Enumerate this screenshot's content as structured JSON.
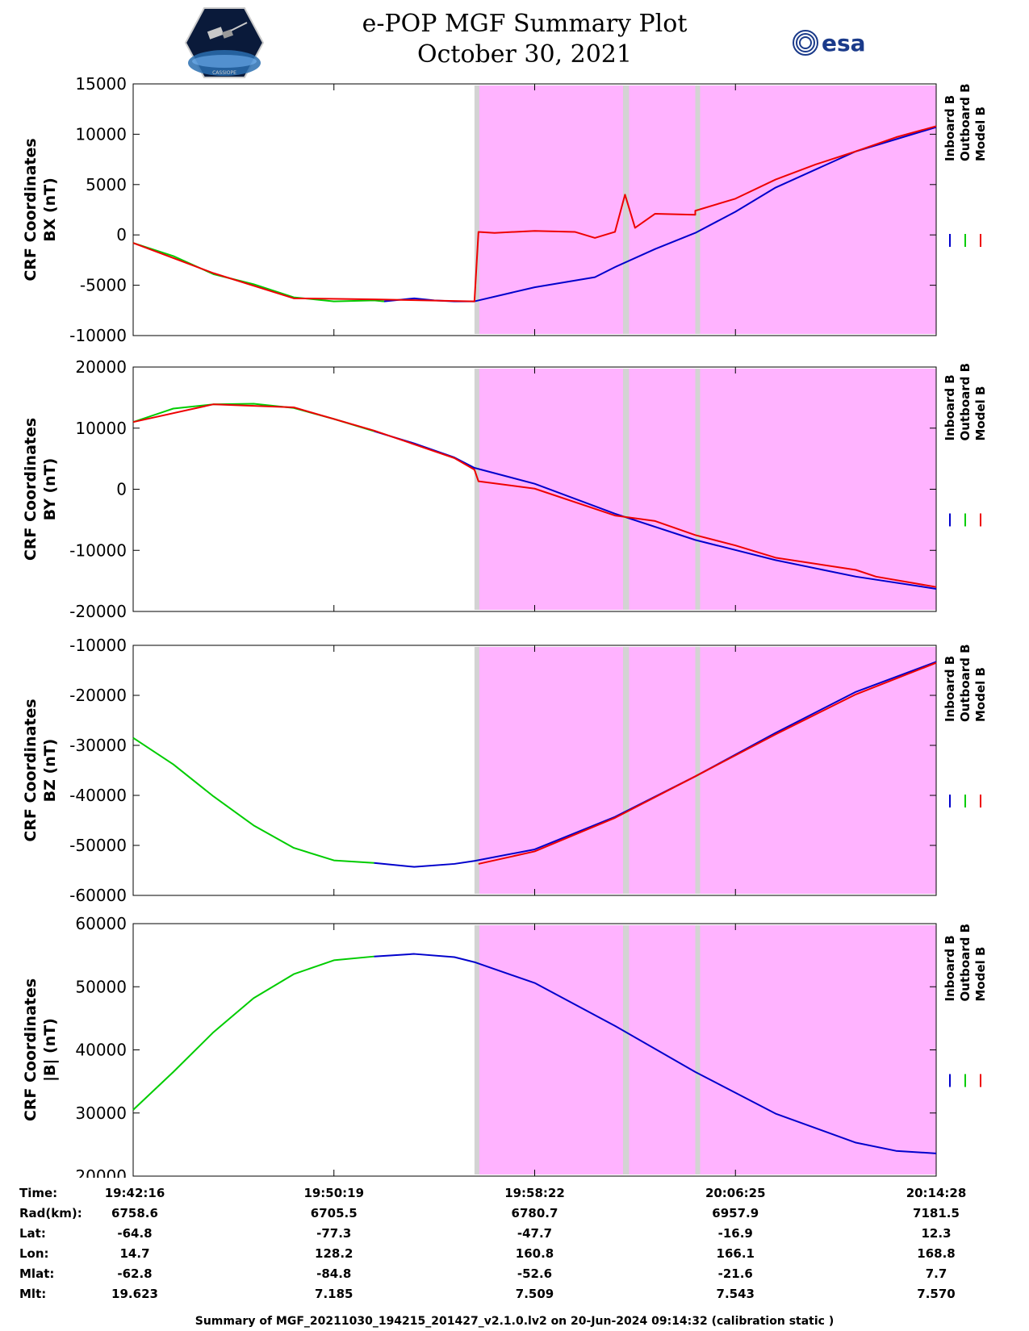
{
  "header": {
    "title_line1": "e-POP MGF Summary Plot",
    "title_line2": "October 30, 2021",
    "logo_left_text": "CASSIOPE",
    "logo_right_text": "esa"
  },
  "colors": {
    "inboard": "#0000cc",
    "outboard": "#00cc00",
    "model": "#ee0000",
    "shade_pink": "#ffb3ff",
    "shade_gray": "#d3d3d3"
  },
  "chart_data": [
    {
      "type": "line",
      "ylabel_line1": "CRF Coordinates",
      "ylabel_line2": "BX (nT)",
      "ylim": [
        -10000,
        15000
      ],
      "yticks": [
        "15000",
        "10000",
        "5000",
        "0",
        "-5000",
        "-10000"
      ],
      "legend": [
        "Inboard B",
        "Outboard B",
        "Model B"
      ],
      "series": [
        {
          "name": "Outboard B",
          "x": [
            0,
            2,
            4,
            6,
            8,
            10,
            12,
            12.5
          ],
          "y": [
            -800,
            -2100,
            -3900,
            -4900,
            -6200,
            -6600,
            -6500,
            -6600
          ]
        },
        {
          "name": "Inboard B",
          "x": [
            12.5,
            14,
            15,
            16,
            17,
            20,
            23,
            24,
            26,
            28,
            30,
            32,
            34,
            36,
            40
          ],
          "y": [
            -6600,
            -6300,
            -6500,
            -6600,
            -6600,
            -5200,
            -4200,
            -3200,
            -1400,
            200,
            2300,
            4700,
            6500,
            8300,
            10700
          ]
        },
        {
          "name": "Model B",
          "x": [
            0,
            4,
            8,
            12,
            17,
            17.2,
            18,
            20,
            22,
            23,
            24,
            24.5,
            25,
            26,
            28,
            28,
            30,
            32,
            34,
            36,
            38,
            40
          ],
          "y": [
            -800,
            -3800,
            -6300,
            -6400,
            -6600,
            300,
            200,
            400,
            300,
            -300,
            300,
            4000,
            700,
            2100,
            2000,
            2400,
            3600,
            5500,
            7000,
            8300,
            9700,
            10800
          ]
        }
      ]
    },
    {
      "type": "line",
      "ylabel_line1": "CRF Coordinates",
      "ylabel_line2": "BY (nT)",
      "ylim": [
        -20000,
        20000
      ],
      "yticks": [
        "20000",
        "10000",
        "0",
        "-10000",
        "-20000"
      ],
      "legend": [
        "Inboard B",
        "Outboard B",
        "Model B"
      ],
      "series": [
        {
          "name": "Outboard B",
          "x": [
            0,
            2,
            4,
            6,
            8,
            10,
            12
          ],
          "y": [
            11000,
            13200,
            13900,
            14000,
            13300,
            11500,
            9500
          ]
        },
        {
          "name": "Inboard B",
          "x": [
            12,
            14,
            16,
            17,
            20,
            24,
            28,
            32,
            36,
            40
          ],
          "y": [
            9500,
            7500,
            5200,
            3500,
            900,
            -4000,
            -8300,
            -11600,
            -14300,
            -16300
          ]
        },
        {
          "name": "Model B",
          "x": [
            0,
            4,
            8,
            12,
            16,
            17,
            17.2,
            20,
            24,
            26,
            28,
            30,
            32,
            36,
            37,
            40
          ],
          "y": [
            11000,
            13900,
            13400,
            9600,
            5100,
            3200,
            1300,
            100,
            -4300,
            -5200,
            -7500,
            -9200,
            -11200,
            -13200,
            -14300,
            -16000
          ]
        }
      ]
    },
    {
      "type": "line",
      "ylabel_line1": "CRF Coordinates",
      "ylabel_line2": "BZ (nT)",
      "ylim": [
        -60000,
        -10000
      ],
      "yticks": [
        "-10000",
        "-20000",
        "-30000",
        "-40000",
        "-50000",
        "-60000"
      ],
      "legend": [
        "Inboard B",
        "Outboard B",
        "Model B"
      ],
      "series": [
        {
          "name": "Outboard B",
          "x": [
            0,
            2,
            4,
            6,
            8,
            10,
            12
          ],
          "y": [
            -28500,
            -33800,
            -40200,
            -46000,
            -50500,
            -53000,
            -53500
          ]
        },
        {
          "name": "Inboard B",
          "x": [
            12,
            14,
            16,
            17,
            20,
            24,
            28,
            32,
            36,
            40
          ],
          "y": [
            -53500,
            -54300,
            -53700,
            -53100,
            -50800,
            -44300,
            -36200,
            -27500,
            -19300,
            -13300
          ]
        },
        {
          "name": "Model B",
          "x": [
            17.2,
            20,
            24,
            28,
            32,
            36,
            40
          ],
          "y": [
            -53700,
            -51200,
            -44500,
            -36200,
            -27800,
            -19800,
            -13500
          ]
        }
      ]
    },
    {
      "type": "line",
      "ylabel_line1": "CRF Coordinates",
      "ylabel_line2": "|B| (nT)",
      "ylim": [
        20000,
        60000
      ],
      "yticks": [
        "60000",
        "50000",
        "40000",
        "30000",
        "20000"
      ],
      "legend": [
        "Inboard B",
        "Outboard B",
        "Model B"
      ],
      "series": [
        {
          "name": "Outboard B",
          "x": [
            0,
            2,
            4,
            6,
            8,
            10,
            12
          ],
          "y": [
            30500,
            36500,
            42800,
            48200,
            52000,
            54200,
            54800
          ]
        },
        {
          "name": "Inboard B",
          "x": [
            12,
            14,
            16,
            17,
            20,
            24,
            28,
            32,
            36,
            38,
            40
          ],
          "y": [
            54800,
            55200,
            54700,
            53900,
            50600,
            43800,
            36500,
            29900,
            25300,
            24000,
            23600
          ]
        }
      ]
    }
  ],
  "shading": {
    "gray_bands": [
      [
        17.0,
        17.2
      ],
      [
        24.4,
        24.7
      ],
      [
        28.0,
        28.2
      ]
    ],
    "pink_range": [
      17.2,
      40
    ]
  },
  "xticks": [
    0,
    10,
    20,
    30,
    40
  ],
  "info": {
    "labels": [
      "Time:",
      "Rad(km):",
      "Lat:",
      "Lon:",
      "Mlat:",
      "Mlt:"
    ],
    "columns": [
      [
        "19:42:16",
        "6758.6",
        "-64.8",
        "14.7",
        "-62.8",
        "19.623"
      ],
      [
        "19:50:19",
        "6705.5",
        "-77.3",
        "128.2",
        "-84.8",
        "7.185"
      ],
      [
        "19:58:22",
        "6780.7",
        "-47.7",
        "160.8",
        "-52.6",
        "7.509"
      ],
      [
        "20:06:25",
        "6957.9",
        "-16.9",
        "166.1",
        "-21.6",
        "7.543"
      ],
      [
        "20:14:28",
        "7181.5",
        "12.3",
        "168.8",
        "7.7",
        "7.570"
      ]
    ]
  },
  "footer": "Summary of MGF_20211030_194215_201427_v2.1.0.lv2 on 20-Jun-2024 09:14:32 (calibration static )"
}
